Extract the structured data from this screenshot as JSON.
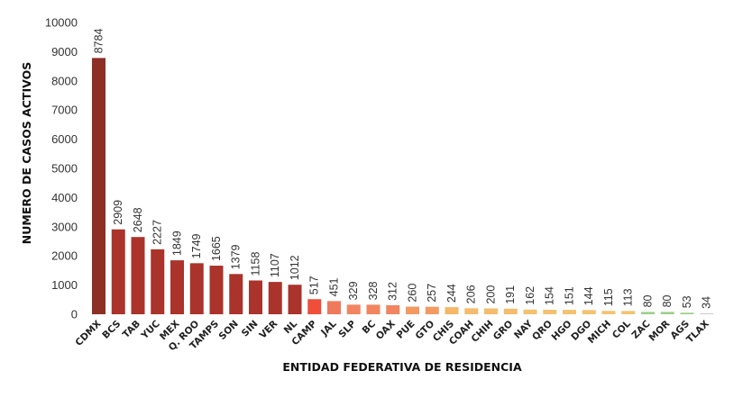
{
  "chart_data": {
    "type": "bar",
    "title": "",
    "xlabel": "ENTIDAD FEDERATIVA DE RESIDENCIA",
    "ylabel": "NUMERO DE CASOS ACTIVOS",
    "ylim": [
      0,
      10000
    ],
    "yticks": [
      0,
      1000,
      2000,
      3000,
      4000,
      5000,
      6000,
      7000,
      8000,
      9000,
      10000
    ],
    "grid": false,
    "categories": [
      "CDMX",
      "BCS",
      "TAB",
      "YUC",
      "MEX",
      "Q. ROO",
      "TAMPS",
      "SON",
      "SIN",
      "VER",
      "NL",
      "CAMP",
      "JAL",
      "SLP",
      "BC",
      "OAX",
      "PUE",
      "GTO",
      "CHIS",
      "COAH",
      "CHIH",
      "GRO",
      "NAY",
      "QRO",
      "HGO",
      "DGO",
      "MICH",
      "COL",
      "ZAC",
      "MOR",
      "AGS",
      "TLAX"
    ],
    "values": [
      8784,
      2909,
      2648,
      2227,
      1849,
      1749,
      1665,
      1379,
      1158,
      1107,
      1012,
      517,
      451,
      329,
      328,
      312,
      260,
      257,
      244,
      206,
      200,
      191,
      162,
      154,
      151,
      144,
      115,
      113,
      80,
      80,
      53,
      34
    ],
    "colors": [
      "#8e2f26",
      "#aa332b",
      "#aa332b",
      "#aa332b",
      "#aa332b",
      "#aa332b",
      "#aa332b",
      "#aa332b",
      "#aa332b",
      "#aa332b",
      "#aa332b",
      "#ee4e3a",
      "#f0795b",
      "#f2855f",
      "#f2855f",
      "#f2855f",
      "#f39a63",
      "#f39a63",
      "#f4b867",
      "#f4bc6c",
      "#f4bc6c",
      "#f4bc6c",
      "#f4c26f",
      "#f4c26f",
      "#f4c26f",
      "#f4c26f",
      "#f4c26f",
      "#f4c26f",
      "#9ccf8c",
      "#9ccf8c",
      "#9ccf8c",
      "#c8cfd0"
    ]
  }
}
